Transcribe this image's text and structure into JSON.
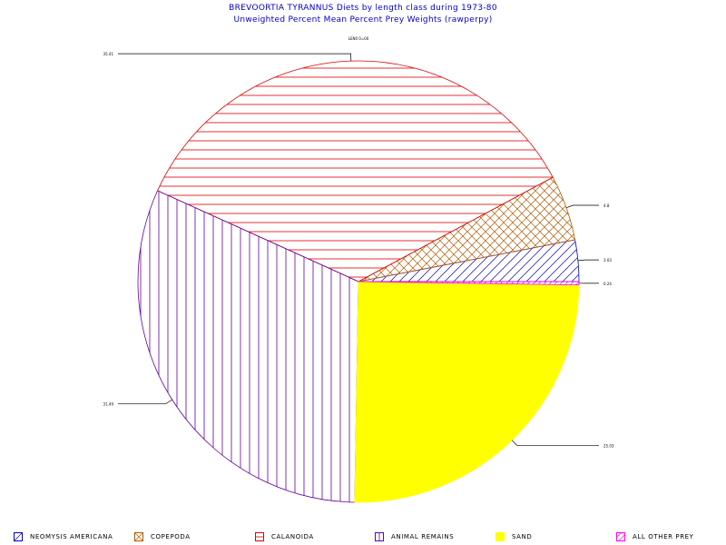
{
  "title": "BREVOORTIA TYRANNUS Diets by length class during 1973-80",
  "subtitle": "Unweighted Percent Mean Percent Prey  Weights (rawperpy)",
  "class_label": "LEN0 0=00",
  "chart_data": {
    "type": "pie",
    "title": "BREVOORTIA TYRANNUS Diets by length class during 1973-80",
    "subtitle": "Unweighted Percent Mean Percent Prey  Weights (rawperpy)",
    "slices": [
      {
        "name": "NEOMYSIS AMERICANA",
        "value": 3.03,
        "label": "3.03",
        "color": "#0000cc",
        "pattern": "diag-down"
      },
      {
        "name": "COPEPODA",
        "value": 4.8,
        "label": "4.8",
        "color": "#b35900",
        "pattern": "crosshatch"
      },
      {
        "name": "CALANOIDA",
        "value": 35.41,
        "label": "35.41",
        "color": "#dd0000",
        "pattern": "horizontal"
      },
      {
        "name": "ANIMAL REMAINS",
        "value": 31.49,
        "label": "31.49",
        "color": "#660099",
        "pattern": "vertical"
      },
      {
        "name": "SAND",
        "value": 25.03,
        "label": "25.03",
        "color": "#ffff00",
        "pattern": "solid"
      },
      {
        "name": "ALL OTHER PREY",
        "value": 0.24,
        "label": "0.24",
        "color": "#ff00ff",
        "pattern": "diag-up"
      }
    ],
    "legend_position": "bottom"
  }
}
